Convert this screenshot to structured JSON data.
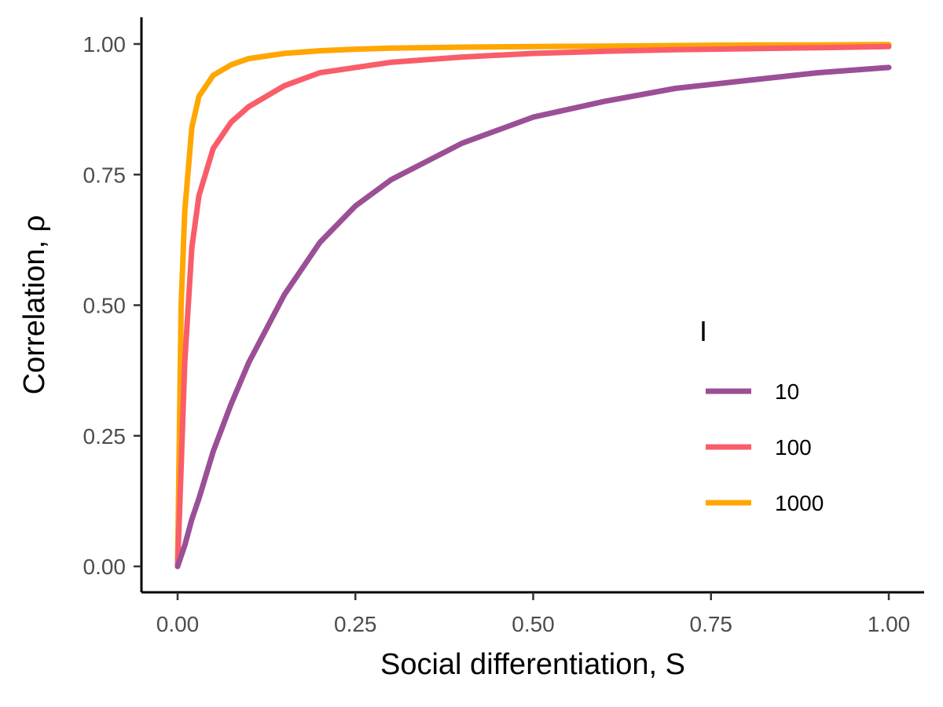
{
  "chart_data": {
    "type": "line",
    "xlabel": "Social differentiation, S",
    "ylabel": "Correlation, ρ",
    "xlim": [
      0,
      1
    ],
    "ylim": [
      0,
      1
    ],
    "x_ticks": [
      "0.00",
      "0.25",
      "0.50",
      "0.75",
      "1.00"
    ],
    "y_ticks": [
      "0.00",
      "0.25",
      "0.50",
      "0.75",
      "1.00"
    ],
    "grid": false,
    "legend": {
      "title": "I",
      "position": "right"
    },
    "x": [
      0,
      0.005,
      0.01,
      0.02,
      0.03,
      0.05,
      0.075,
      0.1,
      0.15,
      0.2,
      0.25,
      0.3,
      0.4,
      0.5,
      0.6,
      0.7,
      0.8,
      0.9,
      1.0
    ],
    "series": [
      {
        "name": "10",
        "color": "#9b4f96",
        "values": [
          0,
          0.02,
          0.04,
          0.09,
          0.13,
          0.22,
          0.31,
          0.39,
          0.52,
          0.62,
          0.69,
          0.74,
          0.81,
          0.86,
          0.89,
          0.915,
          0.93,
          0.945,
          0.955
        ]
      },
      {
        "name": "100",
        "color": "#f95d6a",
        "values": [
          0,
          0.19,
          0.39,
          0.61,
          0.71,
          0.8,
          0.85,
          0.88,
          0.92,
          0.945,
          0.955,
          0.965,
          0.975,
          0.982,
          0.986,
          0.989,
          0.991,
          0.993,
          0.995
        ]
      },
      {
        "name": "1000",
        "color": "#ffa600",
        "values": [
          0,
          0.5,
          0.68,
          0.84,
          0.9,
          0.94,
          0.96,
          0.972,
          0.982,
          0.987,
          0.99,
          0.992,
          0.994,
          0.995,
          0.996,
          0.997,
          0.998,
          0.998,
          0.999
        ]
      }
    ]
  }
}
